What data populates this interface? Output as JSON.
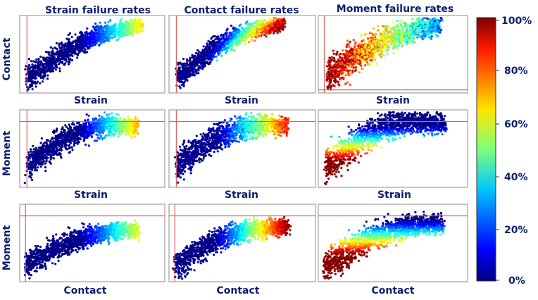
{
  "column_titles": [
    "Strain failure rates",
    "Contact failure rates",
    "Moment failure rates"
  ],
  "row_labels": [
    "Contact",
    "Moment",
    "Moment"
  ],
  "x_labels": [
    [
      "Strain",
      "Strain",
      "Strain"
    ],
    [
      "Strain",
      "Strain",
      "Strain"
    ],
    [
      "Contact",
      "Contact",
      "Contact"
    ]
  ],
  "colorbar": {
    "ticks": [
      "100%",
      "80%",
      "60%",
      "40%",
      "20%",
      "0%"
    ],
    "colormap": "jet",
    "min": 0,
    "max": 100
  },
  "colors": {
    "label_text": "#0b1e6b",
    "threshold_line": "#e06060",
    "panel_border": "#8c8c8c"
  },
  "chart_data": {
    "type": "scatter",
    "layout": "3x3 grid",
    "color_scale": {
      "min_percent": 0,
      "max_percent": 100,
      "colormap": "jet"
    },
    "panels": [
      {
        "row": 1,
        "column": 1,
        "title": "Strain failure rates",
        "xlabel": "Strain",
        "ylabel": "Contact",
        "color_gradient": "along x, 0% at low x to ~65% at high x",
        "color_range_percent": [
          0,
          65
        ]
      },
      {
        "row": 1,
        "column": 2,
        "title": "Contact failure rates",
        "xlabel": "Strain",
        "ylabel": "Contact",
        "color_gradient": "across band, 0% low to ~100% at high y",
        "color_range_percent": [
          0,
          100
        ]
      },
      {
        "row": 1,
        "column": 3,
        "title": "Moment failure rates",
        "xlabel": "Strain",
        "ylabel": "Contact",
        "color_gradient": "~100% at low x to ~20% at high x, noisy",
        "color_range_percent": [
          15,
          100
        ]
      },
      {
        "row": 2,
        "column": 1,
        "title": "Strain failure rates",
        "xlabel": "Strain",
        "ylabel": "Moment",
        "color_gradient": "along x, 0% to ~70%",
        "color_range_percent": [
          0,
          70
        ]
      },
      {
        "row": 2,
        "column": 2,
        "title": "Contact failure rates",
        "xlabel": "Strain",
        "ylabel": "Moment",
        "color_gradient": "along x, noisy, 0% to ~85%",
        "color_range_percent": [
          0,
          85
        ]
      },
      {
        "row": 2,
        "column": 3,
        "title": "Moment failure rates",
        "xlabel": "Strain",
        "ylabel": "Moment",
        "color_gradient": "by y, ~100% low y to 0% high y",
        "color_range_percent": [
          0,
          100
        ]
      },
      {
        "row": 3,
        "column": 1,
        "title": "Strain failure rates",
        "xlabel": "Contact",
        "ylabel": "Moment",
        "color_gradient": "along x, 0% to ~60%",
        "color_range_percent": [
          0,
          60
        ]
      },
      {
        "row": 3,
        "column": 2,
        "title": "Contact failure rates",
        "xlabel": "Contact",
        "ylabel": "Moment",
        "color_gradient": "along x, 0% to ~100%",
        "color_range_percent": [
          0,
          100
        ]
      },
      {
        "row": 3,
        "column": 3,
        "title": "Moment failure rates",
        "xlabel": "Contact",
        "ylabel": "Moment",
        "color_gradient": "by y, ~100% low y to 0% high y",
        "color_range_percent": [
          0,
          100
        ]
      }
    ]
  }
}
